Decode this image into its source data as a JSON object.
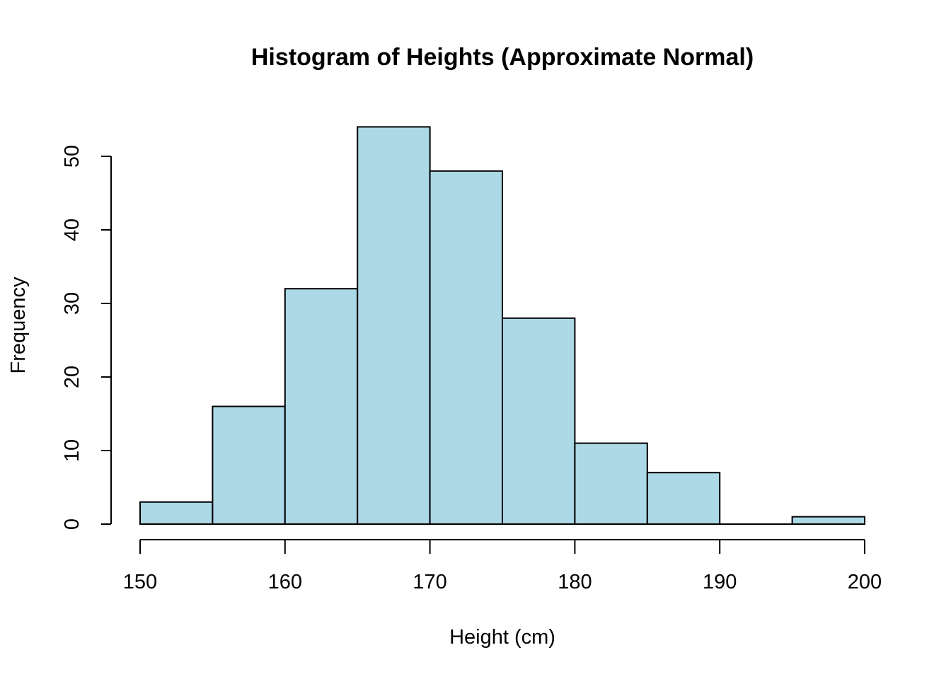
{
  "chart_data": {
    "type": "bar",
    "title": "Histogram of Heights (Approximate Normal)",
    "xlabel": "Height (cm)",
    "ylabel": "Frequency",
    "bins": [
      {
        "start": 150,
        "end": 155,
        "count": 3
      },
      {
        "start": 155,
        "end": 160,
        "count": 16
      },
      {
        "start": 160,
        "end": 165,
        "count": 32
      },
      {
        "start": 165,
        "end": 170,
        "count": 54
      },
      {
        "start": 170,
        "end": 175,
        "count": 48
      },
      {
        "start": 175,
        "end": 180,
        "count": 28
      },
      {
        "start": 180,
        "end": 185,
        "count": 11
      },
      {
        "start": 185,
        "end": 190,
        "count": 7
      },
      {
        "start": 190,
        "end": 195,
        "count": 0
      },
      {
        "start": 195,
        "end": 200,
        "count": 1
      }
    ],
    "xticks": [
      "150",
      "160",
      "170",
      "180",
      "190",
      "200"
    ],
    "yticks": [
      "0",
      "10",
      "20",
      "30",
      "40",
      "50"
    ],
    "xlim": [
      150,
      200
    ],
    "ylim": [
      0,
      50
    ],
    "bar_color": "#add8e6",
    "edge_color": "#000000",
    "grid": false
  }
}
